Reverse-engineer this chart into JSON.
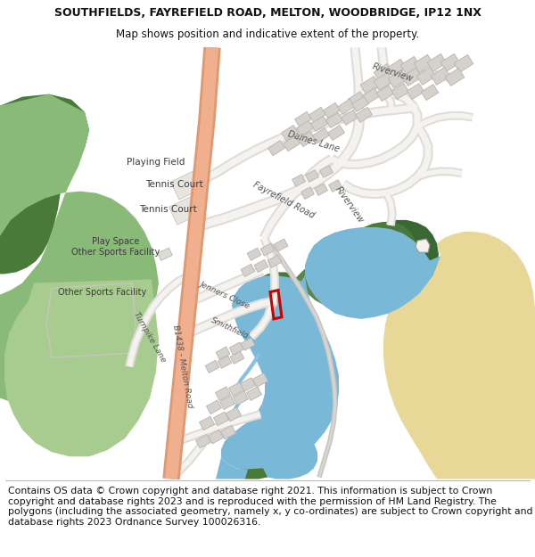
{
  "title": "SOUTHFIELDS, FAYREFIELD ROAD, MELTON, WOODBRIDGE, IP12 1NX",
  "subtitle": "Map shows position and indicative extent of the property.",
  "footer": "Contains OS data © Crown copyright and database right 2021. This information is subject to Crown copyright and database rights 2023 and is reproduced with the permission of HM Land Registry. The polygons (including the associated geometry, namely x, y co-ordinates) are subject to Crown copyright and database rights 2023 Ordnance Survey 100026316.",
  "title_fontsize": 9,
  "subtitle_fontsize": 8.5,
  "footer_fontsize": 7.8,
  "map_bg": "#f0ede8",
  "green_dark": "#4a7a3a",
  "green_mid": "#6a9a55",
  "green_light": "#9aba88",
  "water_blue": "#7ab8d8",
  "sand_color": "#e8d898",
  "road_salmon": "#e8a07a",
  "building_gray": "#d5d2cd",
  "building_outline": "#b8b5b0"
}
